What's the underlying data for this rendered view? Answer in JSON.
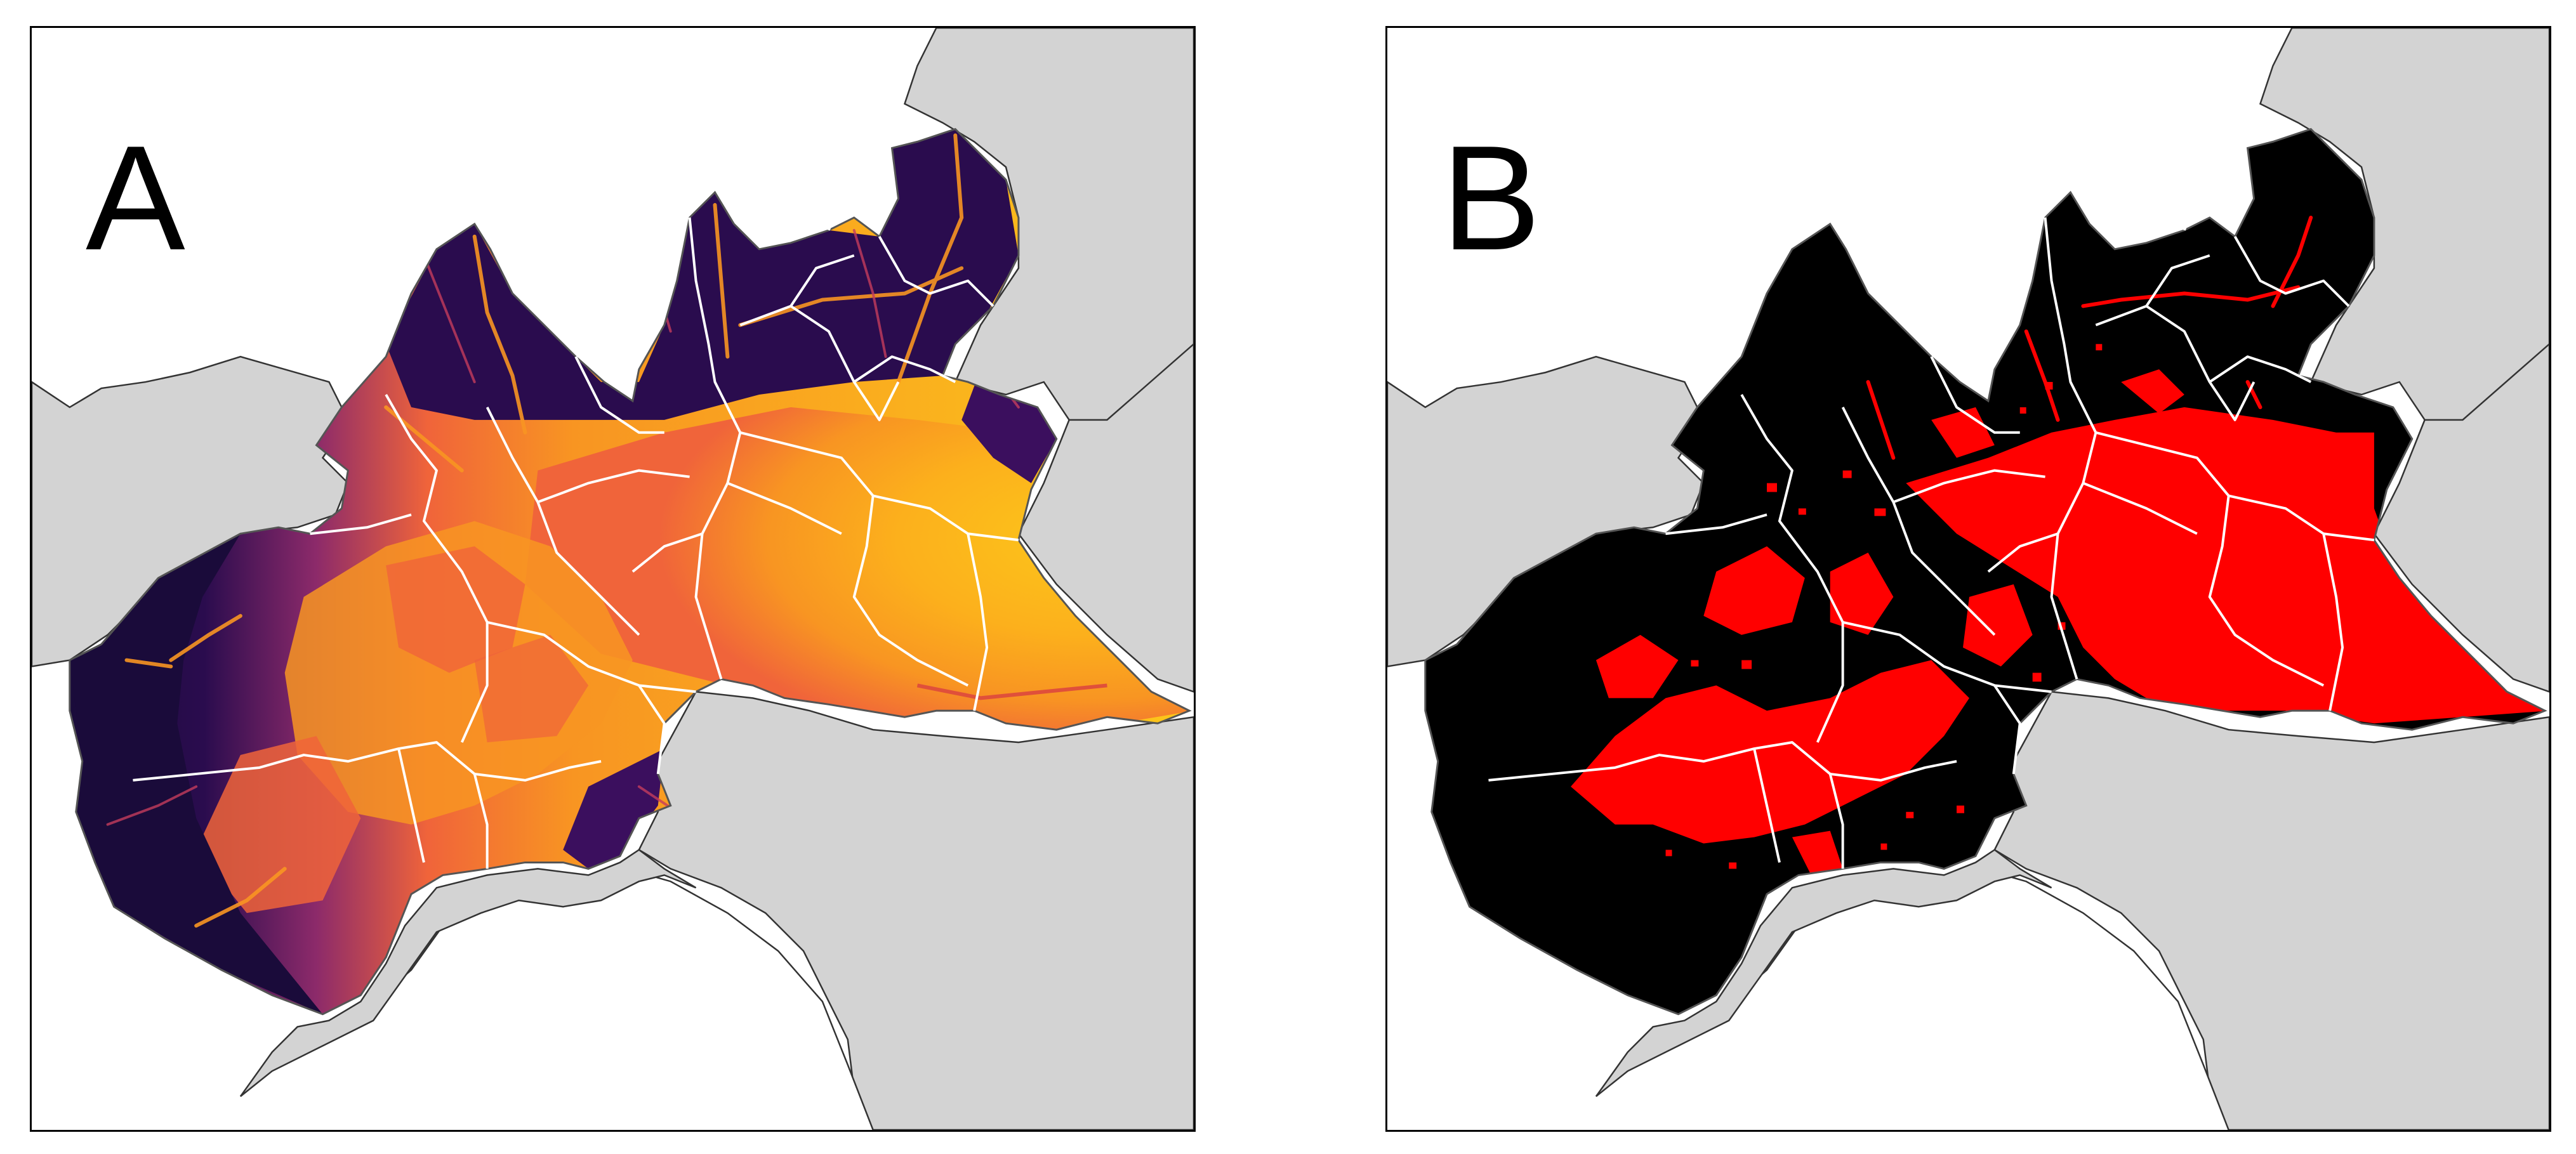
{
  "panels": [
    {
      "id": "a",
      "label": "A",
      "color_scheme": "inferno",
      "colors": {
        "low": "#1a0b3a",
        "mid_dark": "#5c1a78",
        "mid": "#c43c5c",
        "mid_high": "#f0643a",
        "high_orange": "#f89522",
        "highest": "#fcc61a"
      }
    },
    {
      "id": "b",
      "label": "B",
      "color_scheme": "binary",
      "colors": {
        "absent": "#000000",
        "present": "#ff0000"
      }
    }
  ],
  "basemap": {
    "neighbor_fill": "#d3d3d3",
    "neighbor_stroke": "#333333",
    "region_border": "#ffffff",
    "sea": "#ffffff"
  }
}
